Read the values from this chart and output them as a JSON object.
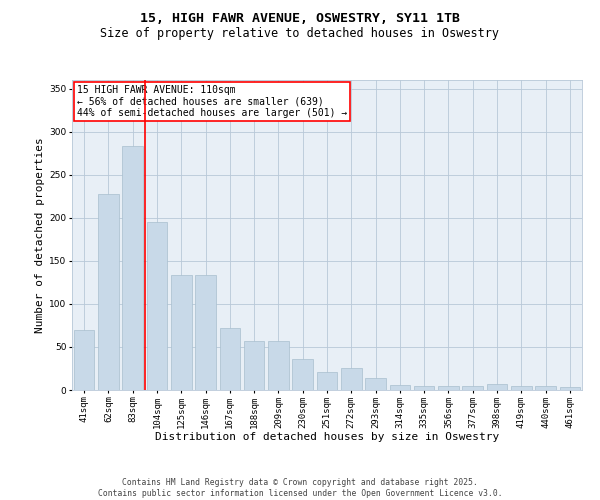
{
  "title": "15, HIGH FAWR AVENUE, OSWESTRY, SY11 1TB",
  "subtitle": "Size of property relative to detached houses in Oswestry",
  "xlabel": "Distribution of detached houses by size in Oswestry",
  "ylabel": "Number of detached properties",
  "categories": [
    "41sqm",
    "62sqm",
    "83sqm",
    "104sqm",
    "125sqm",
    "146sqm",
    "167sqm",
    "188sqm",
    "209sqm",
    "230sqm",
    "251sqm",
    "272sqm",
    "293sqm",
    "314sqm",
    "335sqm",
    "356sqm",
    "377sqm",
    "398sqm",
    "419sqm",
    "440sqm",
    "461sqm"
  ],
  "values": [
    70,
    228,
    283,
    195,
    133,
    133,
    72,
    57,
    57,
    36,
    21,
    26,
    14,
    6,
    5,
    5,
    5,
    7,
    5,
    5,
    3
  ],
  "bar_color": "#c8d9e8",
  "bar_edge_color": "#a8bfce",
  "grid_color": "#b8c8d8",
  "background_color": "#e8eff6",
  "vline_x": 2.5,
  "vline_color": "red",
  "annotation_text": "15 HIGH FAWR AVENUE: 110sqm\n← 56% of detached houses are smaller (639)\n44% of semi-detached houses are larger (501) →",
  "ylim": [
    0,
    360
  ],
  "yticks": [
    0,
    50,
    100,
    150,
    200,
    250,
    300,
    350
  ],
  "footer": "Contains HM Land Registry data © Crown copyright and database right 2025.\nContains public sector information licensed under the Open Government Licence v3.0.",
  "title_fontsize": 9.5,
  "subtitle_fontsize": 8.5,
  "xlabel_fontsize": 8,
  "ylabel_fontsize": 8,
  "tick_fontsize": 6.5,
  "annotation_fontsize": 7,
  "footer_fontsize": 5.8
}
